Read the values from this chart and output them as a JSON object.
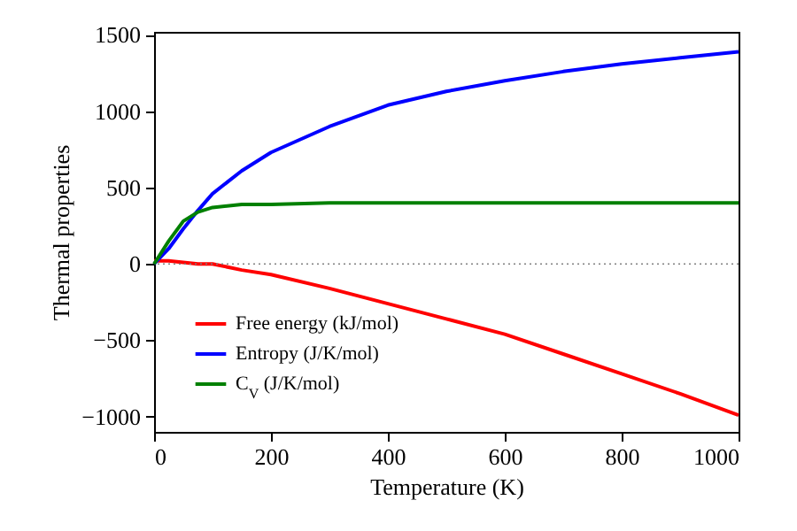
{
  "chart_data": {
    "type": "line",
    "xlabel": "Temperature (K)",
    "ylabel": "Thermal properties",
    "x": [
      0,
      25,
      50,
      75,
      100,
      150,
      200,
      300,
      400,
      500,
      600,
      700,
      800,
      900,
      1000
    ],
    "series": [
      {
        "name": "Free energy (kJ/mol)",
        "color": "#ff0000",
        "values": [
          20,
          20,
          10,
          0,
          0,
          -40,
          -70,
          -160,
          -260,
          -360,
          -460,
          -590,
          -720,
          -850,
          -990
        ]
      },
      {
        "name": "Entropy (J/K/mol)",
        "color": "#0000ff",
        "values": [
          0,
          100,
          230,
          350,
          460,
          610,
          730,
          900,
          1040,
          1130,
          1200,
          1260,
          1310,
          1350,
          1390
        ]
      },
      {
        "name": "C$_{V}$ (J/K/mol)",
        "color": "#008000",
        "values": [
          0,
          150,
          280,
          340,
          370,
          390,
          390,
          400,
          400,
          400,
          400,
          400,
          400,
          400,
          400
        ]
      }
    ],
    "xlim": [
      0,
      1000
    ],
    "xticks": [
      0,
      200,
      400,
      600,
      800,
      1000
    ],
    "ylim": [
      -1100,
      1520
    ],
    "yticks": [
      -1000,
      -500,
      0,
      500,
      1000,
      1500
    ],
    "ref_lines": [
      {
        "axis": "y",
        "value": 0,
        "color": "#808080",
        "line_style": "dotted"
      }
    ],
    "legend": "bottom left",
    "grid": false,
    "marker": "none",
    "line_style": "solid"
  }
}
